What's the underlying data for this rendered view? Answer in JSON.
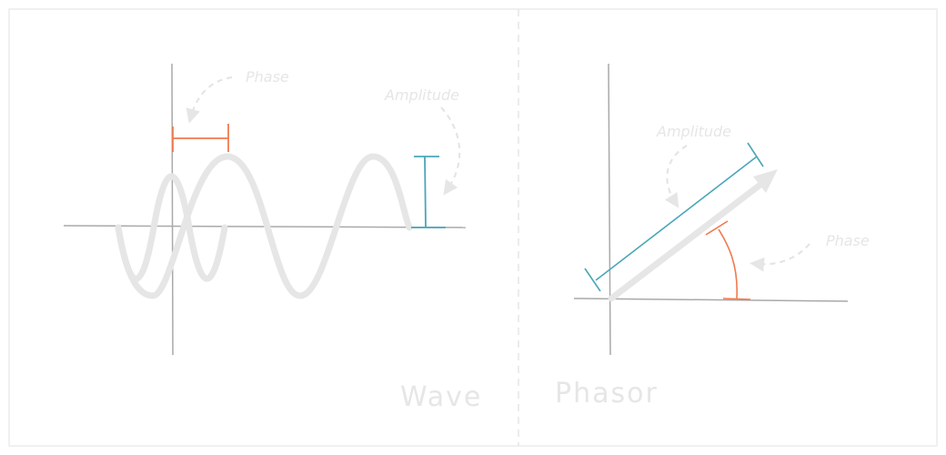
{
  "wave_panel": {
    "phase_label": "Phase",
    "amplitude_label": "Amplitude",
    "title": "Wave"
  },
  "phasor_panel": {
    "amplitude_label": "Amplitude",
    "phase_label": "Phase",
    "title": "Phasor"
  },
  "colors": {
    "phase": "#f07a4e",
    "amplitude": "#4aa6b8",
    "axis": "#a9a9a9",
    "curve": "#e6e6e6",
    "annotation": "#e3e3e3",
    "frame": "#ececec"
  }
}
